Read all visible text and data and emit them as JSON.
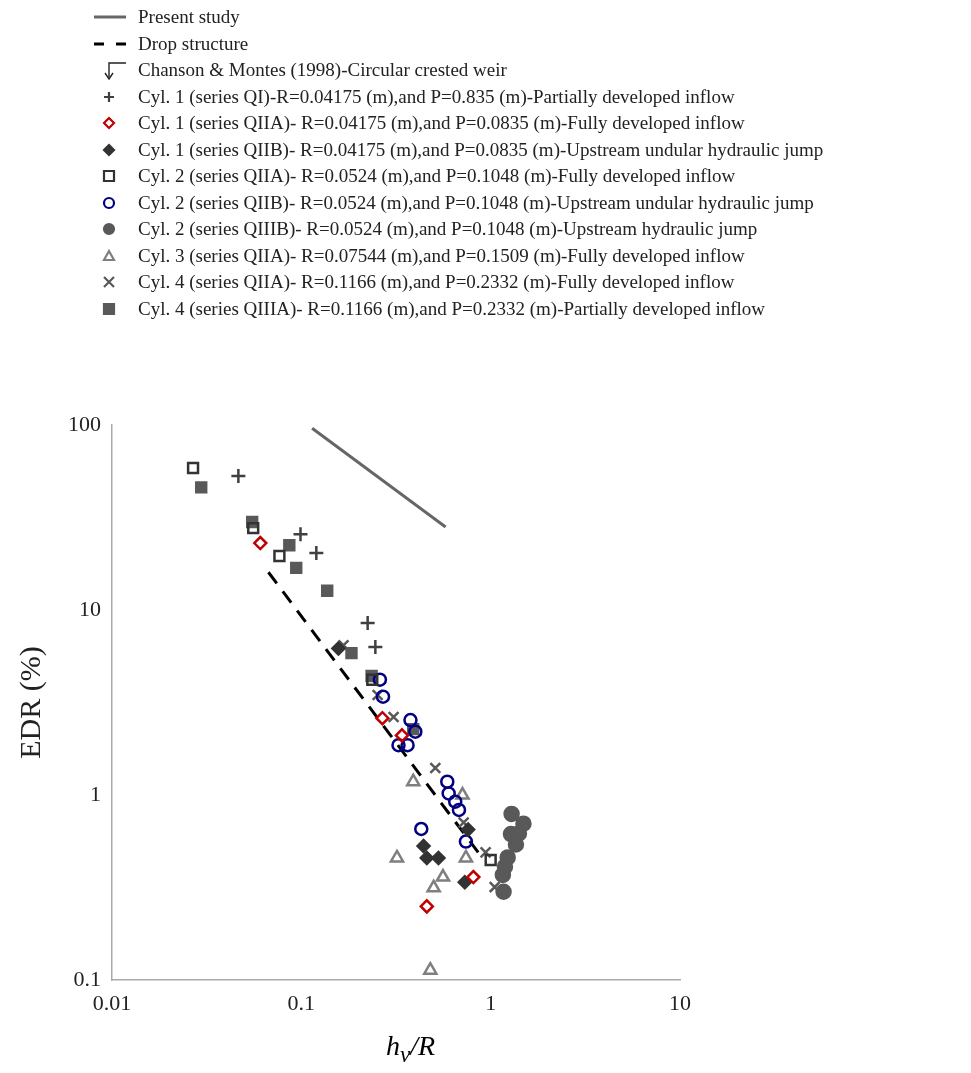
{
  "chart_data": {
    "type": "scatter",
    "xlabel": "h$_{v}$/R",
    "ylabel": "EDR (%)",
    "legend_title": "Chanson & Montes (1998)-Circular crested weir",
    "log": "xy",
    "grid": false,
    "legend": "top",
    "xlim": [
      0.01,
      10
    ],
    "xticks": [
      0.01,
      0.1,
      1,
      10
    ],
    "ylim": [
      0.1,
      100
    ],
    "yticks": [
      0.1,
      1,
      10,
      100
    ],
    "series": [
      {
        "name": "Present study",
        "type": "line",
        "line_style": "solid",
        "marker": "none",
        "color": "#666666",
        "x": [
          0.114,
          0.578
        ],
        "values": [
          96,
          28.1
        ]
      },
      {
        "name": "Drop structure",
        "type": "line",
        "line_style": "dashed",
        "marker": "none",
        "color": "#000000",
        "x": [
          0.067,
          0.885
        ],
        "values": [
          16,
          0.47
        ]
      },
      {
        "name": "Cyl. 1 (series QI)-R=0.04175 (m),and P=0.835 (m)-Partially developed inflow",
        "marker": "plus",
        "color": "#404040",
        "x": [
          0.0465,
          0.099,
          0.12,
          0.224,
          0.246
        ],
        "values": [
          53,
          25.7,
          20.3,
          8.5,
          6.3
        ]
      },
      {
        "name": "Cyl. 1 (series QIIA)- R=0.04175 (m),and P=0.0835 (m)-Fully developed inflow",
        "marker": "diamond-open",
        "color": "#c00000",
        "x": [
          0.0607,
          0.268,
          0.34,
          0.81,
          0.46
        ],
        "values": [
          23,
          2.6,
          2.1,
          0.36,
          0.25
        ]
      },
      {
        "name": "Cyl. 1 (series QIIB)- R=0.04175 (m),and P=0.0835 (m)-Upstream undular hydraulic jump",
        "marker": "diamond",
        "color": "#333333",
        "x": [
          0.157,
          0.442,
          0.46,
          0.53,
          0.73,
          0.76
        ],
        "values": [
          6.2,
          0.53,
          0.457,
          0.457,
          0.338,
          0.65
        ]
      },
      {
        "name": "Cyl. 2 (series QIIA)- R=0.0524 (m),and P=0.1048 (m)-Fully developed inflow",
        "marker": "square-open",
        "color": "#333333",
        "x": [
          0.0268,
          0.0557,
          0.0766,
          0.237,
          1.0
        ],
        "values": [
          58.6,
          27.7,
          19.6,
          4.2,
          0.445
        ]
      },
      {
        "name": "Cyl. 2 (series QIIB)- R=0.0524 (m),and P=0.1048 (m)-Upstream undular hydraulic jump",
        "marker": "circle-open",
        "color": "#000080",
        "x": [
          0.26,
          0.27,
          0.377,
          0.4,
          0.326,
          0.364,
          0.59,
          0.6,
          0.65,
          0.68,
          0.74,
          0.43
        ],
        "values": [
          4.2,
          3.4,
          2.54,
          2.2,
          1.86,
          1.86,
          1.18,
          1.02,
          0.92,
          0.83,
          0.56,
          0.655
        ]
      },
      {
        "name": "Cyl. 2 (series QIIIB)- R=0.0524 (m),and P=0.1048 (m)-Upstream hydraulic jump",
        "marker": "circle",
        "color": "#595959",
        "x": [
          1.29,
          1.49,
          1.28,
          1.41,
          1.36,
          1.23,
          1.19,
          1.16,
          1.17
        ],
        "values": [
          0.79,
          0.7,
          0.615,
          0.62,
          0.54,
          0.46,
          0.41,
          0.37,
          0.3
        ]
      },
      {
        "name": "Cyl. 3 (series QIIA)- R=0.07544 (m),and P=0.1509 (m)-Fully developed inflow",
        "marker": "triangle-open",
        "color": "#7f7f7f",
        "x": [
          0.39,
          0.71,
          0.32,
          0.74,
          0.56,
          0.5,
          0.48
        ],
        "values": [
          1.18,
          1.0,
          0.457,
          0.457,
          0.36,
          0.315,
          0.113
        ]
      },
      {
        "name": "Cyl. 4 (series QIIA)- R=0.1166 (m),and P=0.2332 (m)-Fully developed inflow",
        "marker": "x",
        "color": "#595959",
        "x": [
          0.167,
          0.253,
          0.307,
          0.51,
          0.72,
          0.94,
          1.05
        ],
        "values": [
          6.45,
          3.47,
          2.64,
          1.4,
          0.71,
          0.49,
          0.318
        ]
      },
      {
        "name": "Cyl. 4 (series QIIIA)- R=0.1166 (m),and P=0.2332 (m)-Partially developed inflow",
        "marker": "square",
        "color": "#595959",
        "x": [
          0.0296,
          0.055,
          0.0864,
          0.094,
          0.137,
          0.184,
          0.235,
          0.39
        ],
        "values": [
          46,
          29.9,
          22.4,
          16.9,
          12.7,
          5.85,
          4.4,
          2.27
        ]
      }
    ]
  }
}
